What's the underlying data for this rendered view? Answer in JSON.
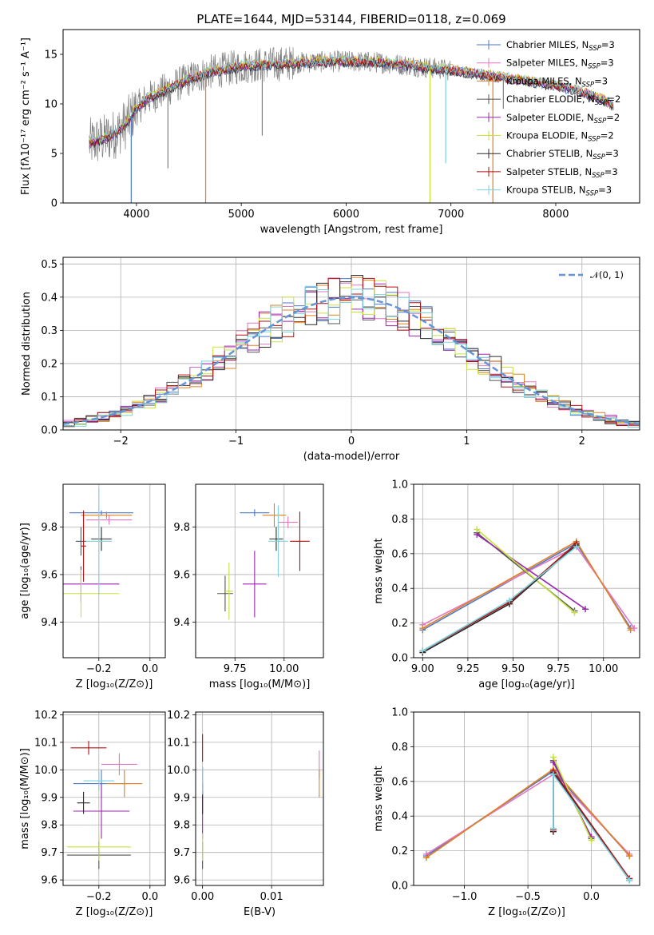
{
  "colors": {
    "chabrier_miles": "#4e79c9",
    "salpeter_miles": "#e377c2",
    "kroupa_miles": "#e0801f",
    "chabrier_elodie": "#555555",
    "salpeter_elodie": "#9b27b0",
    "kroupa_elodie": "#c6e23a",
    "chabrier_stelib": "#2a2a2a",
    "salpeter_stelib": "#b01010",
    "kroupa_stelib": "#7ad3e0",
    "normal": "#6495d6",
    "data_gray": "#808080"
  },
  "chart_data": [
    {
      "id": "spectrum",
      "type": "line",
      "title": "PLATE=1644, MJD=53144, FIBERID=0118, z=0.069",
      "xlabel": "wavelength [Angstrom, rest frame]",
      "ylabel": "Flux [fλ10⁻¹⁷ erg cm⁻² s⁻¹ A⁻¹]",
      "xlim": [
        3300,
        8800
      ],
      "ylim": [
        0,
        17.5
      ],
      "xticks": [
        4000,
        5000,
        6000,
        7000,
        8000
      ],
      "yticks": [
        0,
        5,
        10,
        15
      ],
      "legend_position": "upper-right",
      "legend": [
        {
          "label": "Chabrier MILES, N",
          "sub": "SSP",
          "suffix": "=3",
          "color_key": "chabrier_miles"
        },
        {
          "label": "Salpeter MILES, N",
          "sub": "SSP",
          "suffix": "=3",
          "color_key": "salpeter_miles"
        },
        {
          "label": "Kroupa MILES, N",
          "sub": "SSP",
          "suffix": "=3",
          "color_key": "kroupa_miles"
        },
        {
          "label": "Chabrier ELODIE, N",
          "sub": "SSP",
          "suffix": "=2",
          "color_key": "chabrier_elodie"
        },
        {
          "label": "Salpeter ELODIE, N",
          "sub": "SSP",
          "suffix": "=2",
          "color_key": "salpeter_elodie"
        },
        {
          "label": "Kroupa ELODIE, N",
          "sub": "SSP",
          "suffix": "=2",
          "color_key": "kroupa_elodie"
        },
        {
          "label": "Chabrier STELIB, N",
          "sub": "SSP",
          "suffix": "=3",
          "color_key": "chabrier_stelib"
        },
        {
          "label": "Salpeter STELIB, N",
          "sub": "SSP",
          "suffix": "=3",
          "color_key": "salpeter_stelib"
        },
        {
          "label": "Kroupa STELIB, N",
          "sub": "SSP",
          "suffix": "=3",
          "color_key": "kroupa_stelib"
        }
      ],
      "continuum": [
        [
          3550,
          6.0
        ],
        [
          3700,
          6.5
        ],
        [
          3800,
          7.0
        ],
        [
          3900,
          8.0
        ],
        [
          4000,
          9.5
        ],
        [
          4100,
          10.5
        ],
        [
          4300,
          11.5
        ],
        [
          4500,
          12.5
        ],
        [
          4700,
          13.2
        ],
        [
          5000,
          13.8
        ],
        [
          5300,
          14.0
        ],
        [
          5600,
          14.2
        ],
        [
          6000,
          14.3
        ],
        [
          6300,
          14.2
        ],
        [
          6600,
          13.9
        ],
        [
          7000,
          13.4
        ],
        [
          7400,
          12.8
        ],
        [
          7800,
          12.2
        ],
        [
          8200,
          11.4
        ],
        [
          8500,
          10.2
        ],
        [
          8550,
          9.8
        ]
      ],
      "spikes": [
        [
          3950,
          0
        ],
        [
          4660,
          0
        ],
        [
          4300,
          3.5
        ],
        [
          5200,
          6.8
        ],
        [
          6800,
          0
        ],
        [
          6950,
          4.0
        ],
        [
          7400,
          0
        ],
        [
          7500,
          9.5
        ]
      ]
    },
    {
      "id": "residuals",
      "type": "histogram",
      "xlabel": "(data-model)/error",
      "ylabel": "Normed distribution",
      "xlim": [
        -2.5,
        2.5
      ],
      "ylim": [
        0,
        0.52
      ],
      "xticks": [
        -2,
        -1,
        0,
        1,
        2
      ],
      "yticks": [
        0.0,
        0.1,
        0.2,
        0.3,
        0.4,
        0.5
      ],
      "bin_width": 0.1,
      "legend_label": "𝒩(0, 1)",
      "legend_position": "upper-right"
    },
    {
      "id": "age_vs_z",
      "type": "scatter",
      "xlabel": "Z [log₁₀(Z/Z⊙)]",
      "ylabel": "age  [log₁₀(age/yr)]",
      "xlim": [
        -0.34,
        0.06
      ],
      "ylim": [
        9.25,
        9.98
      ],
      "xticks": [
        -0.2,
        0.0
      ],
      "yticks": [
        9.4,
        9.6,
        9.8
      ],
      "points": [
        {
          "c": "chabrier_miles",
          "x": -0.19,
          "y": 9.86,
          "ex": 0.25,
          "ey": 0.02
        },
        {
          "c": "salpeter_miles",
          "x": -0.16,
          "y": 9.83,
          "ex": 0.18,
          "ey": 0.04
        },
        {
          "c": "kroupa_miles",
          "x": -0.17,
          "y": 9.85,
          "ex": 0.2,
          "ey": 0.03
        },
        {
          "c": "chabrier_elodie",
          "x": -0.27,
          "y": 9.74,
          "ex": 0.04,
          "ey": 0.12
        },
        {
          "c": "salpeter_elodie",
          "x": -0.27,
          "y": 9.56,
          "ex": 0.3,
          "ey": 0.15
        },
        {
          "c": "kroupa_elodie",
          "x": -0.27,
          "y": 9.52,
          "ex": 0.3,
          "ey": 0.2
        },
        {
          "c": "chabrier_stelib",
          "x": -0.19,
          "y": 9.75,
          "ex": 0.08,
          "ey": 0.1
        },
        {
          "c": "salpeter_stelib",
          "x": -0.26,
          "y": 9.72,
          "ex": 0.02,
          "ey": 0.3
        },
        {
          "c": "kroupa_stelib",
          "x": -0.2,
          "y": 9.74,
          "ex": 0.1,
          "ey": 0.45
        }
      ]
    },
    {
      "id": "age_vs_mass",
      "type": "scatter",
      "xlabel": "mass [log₁₀(M/M⊙)]",
      "ylabel": "",
      "xlim": [
        9.55,
        10.2
      ],
      "ylim": [
        9.25,
        9.98
      ],
      "xticks": [
        9.75,
        10.0
      ],
      "yticks": [
        9.4,
        9.6,
        9.8
      ],
      "points": [
        {
          "c": "chabrier_miles",
          "x": 9.85,
          "y": 9.86,
          "ex": 0.15,
          "ey": 0.03
        },
        {
          "c": "salpeter_miles",
          "x": 10.02,
          "y": 9.82,
          "ex": 0.1,
          "ey": 0.05
        },
        {
          "c": "kroupa_miles",
          "x": 9.95,
          "y": 9.85,
          "ex": 0.12,
          "ey": 0.1
        },
        {
          "c": "chabrier_elodie",
          "x": 9.7,
          "y": 9.52,
          "ex": 0.08,
          "ey": 0.15
        },
        {
          "c": "salpeter_elodie",
          "x": 9.85,
          "y": 9.56,
          "ex": 0.12,
          "ey": 0.28
        },
        {
          "c": "kroupa_elodie",
          "x": 9.72,
          "y": 9.53,
          "ex": 0.04,
          "ey": 0.24
        },
        {
          "c": "chabrier_stelib",
          "x": 9.96,
          "y": 9.75,
          "ex": 0.07,
          "ey": 0.1
        },
        {
          "c": "salpeter_stelib",
          "x": 10.08,
          "y": 9.74,
          "ex": 0.1,
          "ey": 0.25
        },
        {
          "c": "kroupa_stelib",
          "x": 9.97,
          "y": 9.74,
          "ex": 0.1,
          "ey": 0.3
        }
      ]
    },
    {
      "id": "weight_vs_age",
      "type": "line",
      "xlabel": "age  [log₁₀(age/yr)]",
      "ylabel": "mass weight",
      "xlim": [
        8.95,
        10.2
      ],
      "ylim": [
        0,
        1.0
      ],
      "xticks": [
        9.0,
        9.25,
        9.5,
        9.75,
        10.0
      ],
      "xticklabels": [
        "9.00",
        "9.25",
        "9.50",
        "9.75",
        "10.00"
      ],
      "yticks": [
        0.0,
        0.2,
        0.4,
        0.6,
        0.8,
        1.0
      ],
      "series": [
        {
          "c": "chabrier_miles",
          "x": [
            9.0,
            9.85,
            10.15
          ],
          "y": [
            0.16,
            0.66,
            0.17
          ]
        },
        {
          "c": "salpeter_miles",
          "x": [
            9.0,
            9.85,
            10.17
          ],
          "y": [
            0.19,
            0.64,
            0.17
          ]
        },
        {
          "c": "kroupa_miles",
          "x": [
            9.0,
            9.85,
            10.15
          ],
          "y": [
            0.17,
            0.67,
            0.16
          ]
        },
        {
          "c": "chabrier_elodie",
          "x": [
            9.3,
            9.84
          ],
          "y": [
            0.72,
            0.27
          ]
        },
        {
          "c": "salpeter_elodie",
          "x": [
            9.3,
            9.9
          ],
          "y": [
            0.71,
            0.28
          ]
        },
        {
          "c": "kroupa_elodie",
          "x": [
            9.3,
            9.84
          ],
          "y": [
            0.74,
            0.26
          ]
        },
        {
          "c": "chabrier_stelib",
          "x": [
            9.0,
            9.48,
            9.85
          ],
          "y": [
            0.03,
            0.31,
            0.65
          ]
        },
        {
          "c": "salpeter_stelib",
          "x": [
            9.0,
            9.48,
            9.85
          ],
          "y": [
            0.04,
            0.32,
            0.66
          ]
        },
        {
          "c": "kroupa_stelib",
          "x": [
            9.0,
            9.48,
            9.85
          ],
          "y": [
            0.04,
            0.33,
            0.64
          ]
        }
      ]
    },
    {
      "id": "mass_vs_z",
      "type": "scatter",
      "xlabel": "Z [log₁₀(Z/Z⊙)]",
      "ylabel": "mass [log₁₀(M/M⊙)]",
      "xlim": [
        -0.34,
        0.06
      ],
      "ylim": [
        9.58,
        10.21
      ],
      "xticks": [
        -0.2,
        0.0
      ],
      "yticks": [
        9.6,
        9.7,
        9.8,
        9.9,
        10.0,
        10.1,
        10.2
      ],
      "points": [
        {
          "c": "chabrier_miles",
          "x": -0.19,
          "y": 9.95,
          "ex": 0.22,
          "ey": 0.1
        },
        {
          "c": "salpeter_miles",
          "x": -0.12,
          "y": 10.02,
          "ex": 0.14,
          "ey": 0.08
        },
        {
          "c": "kroupa_miles",
          "x": -0.1,
          "y": 9.95,
          "ex": 0.14,
          "ey": 0.1
        },
        {
          "c": "chabrier_elodie",
          "x": -0.2,
          "y": 9.69,
          "ex": 0.25,
          "ey": 0.1
        },
        {
          "c": "salpeter_elodie",
          "x": -0.19,
          "y": 9.85,
          "ex": 0.22,
          "ey": 0.2
        },
        {
          "c": "kroupa_elodie",
          "x": -0.2,
          "y": 9.72,
          "ex": 0.25,
          "ey": 0.1
        },
        {
          "c": "chabrier_stelib",
          "x": -0.26,
          "y": 9.88,
          "ex": 0.05,
          "ey": 0.08
        },
        {
          "c": "salpeter_stelib",
          "x": -0.24,
          "y": 10.08,
          "ex": 0.14,
          "ey": 0.05
        },
        {
          "c": "kroupa_stelib",
          "x": -0.2,
          "y": 9.96,
          "ex": 0.12,
          "ey": 0.07
        }
      ]
    },
    {
      "id": "mass_vs_ebv",
      "type": "scatter",
      "xlabel": "E(B-V)",
      "ylabel": "",
      "xlim": [
        -0.001,
        0.0175
      ],
      "ylim": [
        9.58,
        10.21
      ],
      "xticks": [
        0.0,
        0.01
      ],
      "xticklabels": [
        "0.00",
        "0.01"
      ],
      "yticks": [
        9.6,
        9.7,
        9.8,
        9.9,
        10.0,
        10.1,
        10.2
      ],
      "points": [
        {
          "c": "chabrier_miles",
          "x": 0.0,
          "y": 9.96,
          "ex": 0,
          "ey": 0.1
        },
        {
          "c": "salpeter_miles",
          "x": 0.0169,
          "y": 10.02,
          "ex": 0,
          "ey": 0.1
        },
        {
          "c": "kroupa_miles",
          "x": 0.0169,
          "y": 9.95,
          "ex": 0,
          "ey": 0.1
        },
        {
          "c": "chabrier_elodie",
          "x": 0.0,
          "y": 9.69,
          "ex": 0,
          "ey": 0.1
        },
        {
          "c": "salpeter_elodie",
          "x": 0.0,
          "y": 9.85,
          "ex": 0,
          "ey": 0.2
        },
        {
          "c": "kroupa_elodie",
          "x": 0.0,
          "y": 9.72,
          "ex": 0,
          "ey": 0.1
        },
        {
          "c": "chabrier_stelib",
          "x": 0.0,
          "y": 9.88,
          "ex": 0,
          "ey": 0.08
        },
        {
          "c": "salpeter_stelib",
          "x": 0.0,
          "y": 10.08,
          "ex": 0,
          "ey": 0.1
        },
        {
          "c": "kroupa_stelib",
          "x": 0.0,
          "y": 9.96,
          "ex": 0,
          "ey": 0.1
        }
      ]
    },
    {
      "id": "weight_vs_z",
      "type": "line",
      "xlabel": "Z [log₁₀(Z/Z⊙)]",
      "ylabel": "mass weight",
      "xlim": [
        -1.4,
        0.38
      ],
      "ylim": [
        0,
        1.0
      ],
      "xticks": [
        -1.0,
        -0.5,
        0.0
      ],
      "yticks": [
        0.0,
        0.2,
        0.4,
        0.6,
        0.8,
        1.0
      ],
      "series": [
        {
          "c": "chabrier_miles",
          "x": [
            -1.3,
            -0.3,
            0.3
          ],
          "y": [
            0.17,
            0.66,
            0.17
          ]
        },
        {
          "c": "salpeter_miles",
          "x": [
            -1.3,
            -0.3,
            0.3
          ],
          "y": [
            0.18,
            0.64,
            0.18
          ]
        },
        {
          "c": "kroupa_miles",
          "x": [
            -1.3,
            -0.3,
            0.3
          ],
          "y": [
            0.16,
            0.67,
            0.17
          ]
        },
        {
          "c": "chabrier_elodie",
          "x": [
            -0.3,
            0.0
          ],
          "y": [
            0.72,
            0.27
          ]
        },
        {
          "c": "salpeter_elodie",
          "x": [
            -0.3,
            0.0
          ],
          "y": [
            0.71,
            0.28
          ]
        },
        {
          "c": "kroupa_elodie",
          "x": [
            -0.3,
            0.0
          ],
          "y": [
            0.74,
            0.26
          ]
        },
        {
          "c": "chabrier_stelib",
          "x": [
            -0.3,
            -0.3,
            0.3
          ],
          "y": [
            0.31,
            0.65,
            0.03
          ]
        },
        {
          "c": "salpeter_stelib",
          "x": [
            -0.3,
            -0.3,
            0.3
          ],
          "y": [
            0.32,
            0.66,
            0.04
          ]
        },
        {
          "c": "kroupa_stelib",
          "x": [
            -0.3,
            -0.3,
            0.3
          ],
          "y": [
            0.33,
            0.64,
            0.03
          ]
        }
      ]
    }
  ]
}
